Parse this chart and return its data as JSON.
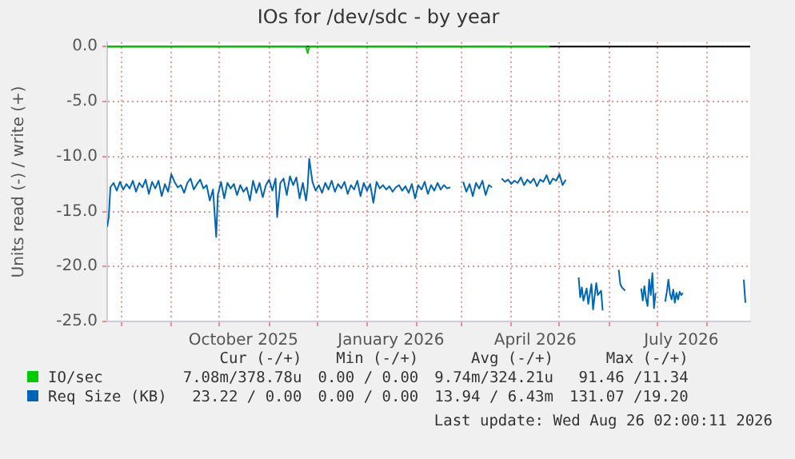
{
  "chart_data": {
    "type": "line",
    "title": "IOs for /dev/sdc - by year",
    "ylabel": "Units read (-) / write (+)",
    "xlim": [
      "2025-07-23",
      "2026-08-28"
    ],
    "ylim": [
      -25,
      0.4
    ],
    "yticks": [
      {
        "value": -25,
        "label": "-25.0"
      },
      {
        "value": -20,
        "label": "-20.0"
      },
      {
        "value": -15,
        "label": "-15.0"
      },
      {
        "value": -10,
        "label": "-10.0"
      },
      {
        "value": -5,
        "label": "-5.0"
      },
      {
        "value": 0,
        "label": "0.0"
      }
    ],
    "xticks": [
      {
        "value": "2025-08-01",
        "label": null
      },
      {
        "value": "2025-09-01",
        "label": null
      },
      {
        "value": "2025-10-01",
        "label": null
      },
      {
        "value": "2025-10-16",
        "label": "October 2025"
      },
      {
        "value": "2025-11-01",
        "label": null
      },
      {
        "value": "2025-12-01",
        "label": null
      },
      {
        "value": "2026-01-01",
        "label": null
      },
      {
        "value": "2026-01-16",
        "label": "January 2026"
      },
      {
        "value": "2026-02-01",
        "label": null
      },
      {
        "value": "2026-03-01",
        "label": null
      },
      {
        "value": "2026-04-01",
        "label": null
      },
      {
        "value": "2026-04-16",
        "label": "April 2026"
      },
      {
        "value": "2026-05-01",
        "label": null
      },
      {
        "value": "2026-06-01",
        "label": null
      },
      {
        "value": "2026-07-01",
        "label": null
      },
      {
        "value": "2026-07-16",
        "label": "July 2026"
      },
      {
        "value": "2026-08-01",
        "label": null
      }
    ],
    "grid": true,
    "legend": "bottom",
    "marker": "none",
    "line_style": "solid",
    "ref_lines": [
      {
        "axis": "y",
        "value": 0,
        "color": "#000000"
      }
    ],
    "series": [
      {
        "name": "IO/sec",
        "color": "#00cc00",
        "x": [
          "2025-07-23",
          "2025-08-20",
          "2025-09-20",
          "2025-10-20",
          "2025-11-24",
          "2025-11-25",
          "2025-11-26",
          "2025-12-30",
          "2026-02-10",
          "2026-03-20",
          "2026-04-25"
        ],
        "values": [
          0,
          0,
          0,
          0,
          0,
          -0.6,
          0,
          0,
          0,
          0,
          0
        ]
      },
      {
        "name": "Req Size (KB)",
        "color": "#0066b3",
        "x": [
          "2025-07-23",
          "2025-07-24",
          "2025-07-25",
          "2025-07-27",
          "2025-07-29",
          "2025-07-31",
          "2025-08-02",
          "2025-08-04",
          "2025-08-06",
          "2025-08-08",
          "2025-08-10",
          "2025-08-12",
          "2025-08-14",
          "2025-08-16",
          "2025-08-18",
          "2025-08-20",
          "2025-08-22",
          "2025-08-24",
          "2025-08-26",
          "2025-08-28",
          "2025-08-30",
          "2025-09-01",
          "2025-09-03",
          "2025-09-05",
          "2025-09-07",
          "2025-09-09",
          "2025-09-11",
          "2025-09-13",
          "2025-09-15",
          "2025-09-17",
          "2025-09-19",
          "2025-09-21",
          "2025-09-23",
          "2025-09-25",
          "2025-09-27",
          "2025-09-29",
          "2025-09-30",
          "2025-10-02",
          "2025-10-04",
          "2025-10-06",
          "2025-10-08",
          "2025-10-10",
          "2025-10-12",
          "2025-10-14",
          "2025-10-16",
          "2025-10-18",
          "2025-10-20",
          "2025-10-22",
          "2025-10-24",
          "2025-10-26",
          "2025-10-28",
          "2025-10-30",
          "2025-11-01",
          "2025-11-03",
          "2025-11-05",
          "2025-11-06",
          "2025-11-08",
          "2025-11-10",
          "2025-11-12",
          "2025-11-14",
          "2025-11-16",
          "2025-11-18",
          "2025-11-20",
          "2025-11-22",
          "2025-11-24",
          "2025-11-25",
          "2025-11-26",
          "2025-11-28",
          "2025-11-30",
          "2025-12-02",
          "2025-12-04",
          "2025-12-06",
          "2025-12-08",
          "2025-12-10",
          "2025-12-12",
          "2025-12-14",
          "2025-12-16",
          "2025-12-18",
          "2025-12-20",
          "2025-12-22",
          "2025-12-24",
          "2025-12-26",
          "2025-12-28",
          "2025-12-30",
          "2026-01-01",
          "2026-01-03",
          "2026-01-05",
          "2026-01-07",
          "2026-01-09",
          "2026-01-11",
          "2026-01-13",
          "2026-01-15",
          "2026-01-17",
          "2026-01-19",
          "2026-01-21",
          "2026-01-23",
          "2026-01-25",
          "2026-01-27",
          "2026-01-29",
          "2026-01-31",
          "2026-02-02",
          "2026-02-04",
          "2026-02-06",
          "2026-02-08",
          "2026-02-10",
          "2026-02-12",
          "2026-02-14",
          "2026-02-16",
          "2026-02-18",
          "2026-02-20",
          "2026-02-22",
          "2026-02-26",
          "2026-03-02",
          "2026-03-04",
          "2026-03-06",
          "2026-03-08",
          "2026-03-10",
          "2026-03-12",
          "2026-03-14",
          "2026-03-16",
          "2026-03-18",
          "2026-03-20",
          "2026-03-23",
          "2026-03-26",
          "2026-03-28",
          "2026-03-30",
          "2026-04-01",
          "2026-04-03",
          "2026-04-05",
          "2026-04-07",
          "2026-04-09",
          "2026-04-11",
          "2026-04-13",
          "2026-04-15",
          "2026-04-17",
          "2026-04-19",
          "2026-04-21",
          "2026-04-23",
          "2026-04-25",
          "2026-04-27",
          "2026-04-29",
          "2026-05-01",
          "2026-05-03",
          "2026-05-05",
          "2026-05-08",
          "2026-05-13",
          "2026-05-14",
          "2026-05-15",
          "2026-05-16",
          "2026-05-18",
          "2026-05-19",
          "2026-05-21",
          "2026-05-22",
          "2026-05-24",
          "2026-05-25",
          "2026-05-27",
          "2026-05-28",
          "2026-06-02",
          "2026-06-07",
          "2026-06-08",
          "2026-06-09",
          "2026-06-11",
          "2026-06-17",
          "2026-06-21",
          "2026-06-22",
          "2026-06-23",
          "2026-06-24",
          "2026-06-25",
          "2026-06-26",
          "2026-06-27",
          "2026-06-28",
          "2026-06-29",
          "2026-06-30",
          "2026-07-03",
          "2026-07-06",
          "2026-07-07",
          "2026-07-08",
          "2026-07-09",
          "2026-07-10",
          "2026-07-11",
          "2026-07-12",
          "2026-07-13",
          "2026-07-14",
          "2026-07-15",
          "2026-07-16",
          "2026-07-17",
          "2026-08-01",
          "2026-08-24",
          "2026-08-25"
        ],
        "values": [
          -16.4,
          -15.5,
          -12.8,
          -12.4,
          -13.1,
          -12.3,
          -13.0,
          -12.5,
          -12.9,
          -12.2,
          -13.2,
          -12.4,
          -12.8,
          -12.1,
          -13.4,
          -12.3,
          -12.9,
          -12.2,
          -13.6,
          -12.5,
          -13.2,
          -11.6,
          -12.3,
          -12.8,
          -12.6,
          -13.3,
          -12.4,
          -12.0,
          -13.0,
          -12.5,
          -12.1,
          -12.9,
          -12.6,
          -14.0,
          -13.0,
          -17.3,
          -13.5,
          -12.3,
          -13.8,
          -12.4,
          -12.9,
          -12.5,
          -13.5,
          -12.6,
          -13.2,
          -12.8,
          -14.0,
          -12.2,
          -13.3,
          -12.4,
          -13.7,
          -12.6,
          -12.1,
          -13.1,
          -12.0,
          -15.5,
          -12.4,
          -12.0,
          -13.5,
          -11.8,
          -12.6,
          -11.9,
          -13.8,
          -12.4,
          -14.0,
          -12.8,
          -10.2,
          -12.3,
          -13.1,
          -12.6,
          -13.3,
          -12.4,
          -13.0,
          -12.2,
          -13.2,
          -12.5,
          -12.9,
          -12.3,
          -13.4,
          -12.6,
          -13.0,
          -12.2,
          -13.6,
          -12.4,
          -13.1,
          -12.5,
          -14.2,
          -12.3,
          -12.9,
          -12.6,
          -13.0,
          -12.7,
          -13.2,
          -12.8,
          -12.6,
          -13.1,
          -12.7,
          -13.3,
          -12.5,
          -13.8,
          -12.6,
          -13.0,
          -12.3,
          -13.4,
          -12.6,
          -13.1,
          -12.4,
          -13.0,
          -12.6,
          -12.9,
          -12.8,
          null,
          -12.3,
          -13.2,
          -12.5,
          -13.6,
          -12.4,
          -12.9,
          -12.2,
          -13.5,
          -12.6,
          -12.8,
          null,
          -12.0,
          -12.3,
          -12.1,
          -12.5,
          -12.2,
          -12.4,
          -11.9,
          -12.6,
          -12.1,
          -12.4,
          -12.0,
          -12.7,
          -12.1,
          -12.3,
          -11.7,
          -12.5,
          -12.0,
          -12.2,
          -11.6,
          -12.6,
          -12.1,
          null,
          -21.0,
          -22.8,
          -21.9,
          -23.1,
          -22.0,
          -23.4,
          -21.6,
          -23.9,
          -21.5,
          -22.6,
          -22.2,
          -24.0,
          null,
          -20.3,
          -21.6,
          -21.9,
          -22.2,
          null,
          -22.0,
          -23.1,
          -21.8,
          -22.9,
          -23.6,
          -21.2,
          -22.6,
          -20.6,
          -23.8,
          -22.4,
          null,
          -23.2,
          -22.3,
          -21.2,
          -22.5,
          -23.0,
          -22.1,
          -23.3,
          -22.4,
          -23.0,
          -22.3,
          -22.6,
          -22.4,
          null,
          -21.2,
          -23.3
        ]
      }
    ],
    "annotations": [
      "Cur (-/+)",
      "Min (-/+)",
      "Avg (-/+)",
      "Max (-/+)",
      "7.08m/378.78u",
      "0.00 / 0.00",
      "9.74m/324.21u",
      "91.46 /11.34",
      "23.22 / 0.00",
      "0.00 / 0.00",
      "13.94 / 6.43m",
      "131.07 /19.20",
      "Last update: Wed Aug 26 02:00:11 2026"
    ]
  }
}
